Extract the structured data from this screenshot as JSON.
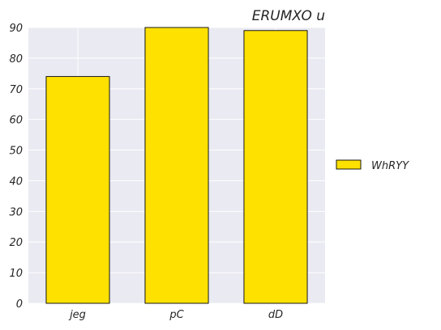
{
  "chart_data": {
    "type": "bar",
    "title": "ERUMXO u",
    "xlabel": "",
    "ylabel": "",
    "categories": [
      "jeg",
      "pC",
      "dD"
    ],
    "series": [
      {
        "name": "WhRYY",
        "values": [
          74,
          90,
          89
        ],
        "color": "#FFE100"
      }
    ],
    "ylim": [
      0,
      90
    ],
    "yticks": [
      0,
      10,
      20,
      30,
      40,
      50,
      60,
      70,
      80,
      90
    ],
    "grid": true,
    "background_color": "#EAEAF2",
    "grid_color": "#FFFFFF",
    "legend_position": "right"
  }
}
